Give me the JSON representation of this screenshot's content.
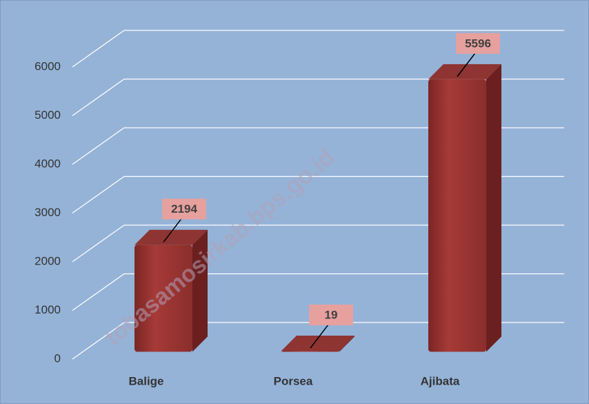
{
  "chart_data": {
    "type": "bar3d",
    "categories": [
      "Balige",
      "Porsea",
      "Ajibata"
    ],
    "values": [
      2194,
      19,
      5596
    ],
    "color": "#953735",
    "ylim": [
      0,
      6000
    ],
    "yticks": [
      0,
      1000,
      2000,
      3000,
      4000,
      5000,
      6000
    ],
    "grid": true,
    "watermark": "tobasamosirkab.bps.go.id"
  }
}
